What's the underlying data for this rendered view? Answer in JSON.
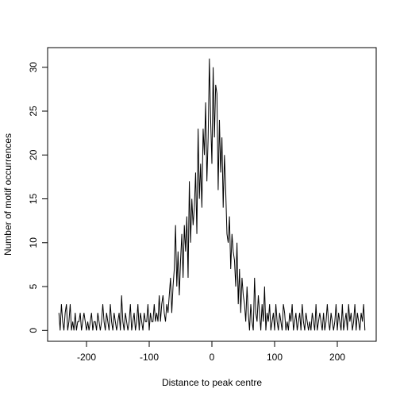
{
  "chart_data": {
    "type": "line",
    "x_label": "Distance to peak centre",
    "y_label": "Number of motif occurrences",
    "color": "#000000",
    "xlim": [
      -262,
      262
    ],
    "ylim": [
      -1.24,
      32.24
    ],
    "xticks": [
      -200,
      -100,
      0,
      100,
      200
    ],
    "yticks": [
      0,
      5,
      10,
      15,
      20,
      25,
      30
    ],
    "x": [
      -244,
      -242,
      -240,
      -238,
      -236,
      -234,
      -232,
      -230,
      -228,
      -226,
      -224,
      -222,
      -220,
      -218,
      -216,
      -214,
      -212,
      -210,
      -208,
      -206,
      -204,
      -202,
      -200,
      -198,
      -196,
      -194,
      -192,
      -190,
      -188,
      -186,
      -184,
      -182,
      -180,
      -178,
      -176,
      -174,
      -172,
      -170,
      -168,
      -166,
      -164,
      -162,
      -160,
      -158,
      -156,
      -154,
      -152,
      -150,
      -148,
      -146,
      -144,
      -142,
      -140,
      -138,
      -136,
      -134,
      -132,
      -130,
      -128,
      -126,
      -124,
      -122,
      -120,
      -118,
      -116,
      -114,
      -112,
      -110,
      -108,
      -106,
      -104,
      -102,
      -100,
      -98,
      -96,
      -94,
      -92,
      -90,
      -88,
      -86,
      -84,
      -82,
      -80,
      -78,
      -76,
      -74,
      -72,
      -70,
      -68,
      -66,
      -64,
      -62,
      -60,
      -58,
      -56,
      -54,
      -52,
      -50,
      -48,
      -46,
      -44,
      -42,
      -40,
      -38,
      -36,
      -34,
      -32,
      -30,
      -28,
      -26,
      -24,
      -22,
      -20,
      -18,
      -16,
      -14,
      -12,
      -10,
      -8,
      -6,
      -4,
      -2,
      0,
      2,
      4,
      6,
      8,
      10,
      12,
      14,
      16,
      18,
      20,
      22,
      24,
      26,
      28,
      30,
      32,
      34,
      36,
      38,
      40,
      42,
      44,
      46,
      48,
      50,
      52,
      54,
      56,
      58,
      60,
      62,
      64,
      66,
      68,
      70,
      72,
      74,
      76,
      78,
      80,
      82,
      84,
      86,
      88,
      90,
      92,
      94,
      96,
      98,
      100,
      102,
      104,
      106,
      108,
      110,
      112,
      114,
      116,
      118,
      120,
      122,
      124,
      126,
      128,
      130,
      132,
      134,
      136,
      138,
      140,
      142,
      144,
      146,
      148,
      150,
      152,
      154,
      156,
      158,
      160,
      162,
      164,
      166,
      168,
      170,
      172,
      174,
      176,
      178,
      180,
      182,
      184,
      186,
      188,
      190,
      192,
      194,
      196,
      198,
      200,
      202,
      204,
      206,
      208,
      210,
      212,
      214,
      216,
      218,
      220,
      222,
      224,
      226,
      228,
      230,
      232,
      234,
      236,
      238,
      240,
      242,
      244
    ],
    "values": [
      2,
      0,
      3,
      1,
      0,
      2,
      3,
      0,
      1,
      3,
      0,
      1,
      0,
      2,
      0,
      1,
      1,
      2,
      0,
      1,
      2,
      1,
      0,
      1,
      0,
      1,
      2,
      0,
      1,
      1,
      0,
      2,
      1,
      0,
      1,
      3,
      1,
      0,
      2,
      1,
      0,
      3,
      1,
      0,
      2,
      1,
      0,
      1,
      2,
      0,
      4,
      1,
      0,
      2,
      1,
      0,
      1,
      3,
      0,
      1,
      2,
      0,
      1,
      3,
      0,
      2,
      1,
      0,
      2,
      1,
      1,
      3,
      0,
      2,
      1,
      1,
      3,
      1,
      2,
      1,
      4,
      1,
      3,
      4,
      2,
      1,
      3,
      2,
      4,
      6,
      2,
      5,
      7,
      12,
      5,
      9,
      4,
      8,
      11,
      6,
      12,
      9,
      13,
      6,
      17,
      10,
      15,
      12,
      14,
      18,
      11,
      23,
      15,
      19,
      14,
      23,
      20,
      26,
      17,
      22,
      31,
      24,
      19,
      30,
      22,
      28,
      27,
      16,
      24,
      18,
      22,
      14,
      20,
      16,
      11,
      10,
      13,
      7,
      11,
      9,
      8,
      5,
      10,
      3,
      7,
      2,
      6,
      4,
      3,
      1,
      5,
      2,
      0,
      3,
      1,
      0,
      6,
      2,
      1,
      4,
      2,
      0,
      3,
      1,
      5,
      0,
      2,
      1,
      3,
      0,
      1,
      2,
      0,
      3,
      1,
      0,
      2,
      1,
      0,
      3,
      2,
      0,
      1,
      0,
      2,
      1,
      3,
      0,
      1,
      2,
      0,
      1,
      2,
      0,
      3,
      1,
      0,
      2,
      1,
      0,
      1,
      0,
      2,
      1,
      0,
      3,
      0,
      1,
      2,
      1,
      0,
      2,
      0,
      1,
      3,
      1,
      0,
      2,
      1,
      0,
      1,
      3,
      0,
      2,
      1,
      0,
      3,
      0,
      1,
      2,
      0,
      3,
      1,
      2,
      0,
      1,
      3,
      0,
      2,
      1,
      0,
      2,
      1,
      3,
      0
    ]
  }
}
